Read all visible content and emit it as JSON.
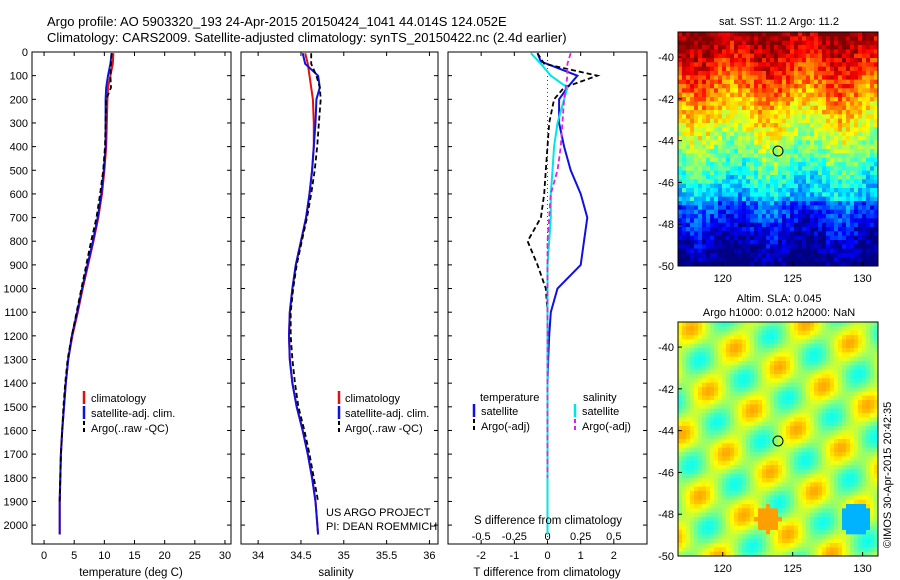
{
  "header": {
    "title_line1": "Argo profile: AO 5903320_193 24-Apr-2015 20150424_1041 44.014S 124.052E",
    "title_line2": "Climatology: CARS2009. Satellite-adjusted climatology: synTS_20150422.nc (2.4d earlier)"
  },
  "colors": {
    "climatology": "#e01010",
    "satellite": "#1010e0",
    "argo": "#000000",
    "salinity_sat": "#00e5e5",
    "salinity_argo": "#e020e0"
  },
  "legend_profile": [
    "climatology",
    "satellite-adj. clim.",
    "Argo(..raw -QC)"
  ],
  "legend_diff": {
    "temperature_title": "temperature",
    "salinity_title": "salinity",
    "temp_items": [
      "satellite",
      "Argo(-adj)"
    ],
    "sal_items": [
      "satellite",
      "Argo(-adj)"
    ]
  },
  "project": {
    "line1": "US ARGO PROJECT",
    "line2": "PI: DEAN ROEMMICH"
  },
  "imos_stamp": "©IMOS 30-Apr-2015 20:42:35",
  "maps": {
    "sst_title": "sat. SST: 11.2 Argo: 11.2",
    "sla_title_line1": "Altim. SLA: 0.045",
    "sla_title_line2": "Argo h1000: 0.012 h2000: NaN",
    "lat_ticks": [
      -40,
      -42,
      -44,
      -46,
      -48,
      -50
    ],
    "lon_ticks": [
      120,
      125,
      130
    ],
    "argo_location": {
      "lon": 124.052,
      "lat": -44.014
    }
  },
  "chart_data": [
    {
      "type": "line",
      "xlabel": "temperature (deg C)",
      "ylabel": "",
      "xlim": [
        -2,
        31
      ],
      "ylim": [
        2080,
        0
      ],
      "xticks": [
        0,
        5,
        10,
        15,
        20,
        25,
        30
      ],
      "yticks": [
        0,
        100,
        200,
        300,
        400,
        500,
        600,
        700,
        800,
        900,
        1000,
        1100,
        1200,
        1300,
        1400,
        1500,
        1600,
        1700,
        1800,
        1900,
        2000
      ],
      "series": [
        {
          "name": "climatology",
          "color": "#e01010",
          "x": [
            11.5,
            11.4,
            11.0,
            10.6,
            10.5,
            10.4,
            10.3,
            10.0,
            9.6,
            9.0,
            8.2,
            7.3,
            6.4,
            5.6,
            4.7,
            4.0,
            3.6,
            3.3,
            3.0,
            2.8,
            2.7,
            2.6,
            2.6
          ],
          "y": [
            5,
            50,
            100,
            150,
            200,
            300,
            400,
            500,
            600,
            700,
            800,
            900,
            1000,
            1100,
            1200,
            1300,
            1400,
            1500,
            1600,
            1700,
            1800,
            1900,
            2040
          ]
        },
        {
          "name": "satellite-adj. clim.",
          "color": "#1010e0",
          "x": [
            11.2,
            11.0,
            10.6,
            10.3,
            10.2,
            10.2,
            10.2,
            9.9,
            9.5,
            8.9,
            8.1,
            7.2,
            6.3,
            5.5,
            4.6,
            4.0,
            3.6,
            3.3,
            3.0,
            2.8,
            2.7,
            2.6,
            2.6
          ],
          "y": [
            5,
            50,
            100,
            150,
            200,
            300,
            400,
            500,
            600,
            700,
            800,
            900,
            1000,
            1100,
            1200,
            1300,
            1400,
            1500,
            1600,
            1700,
            1800,
            1900,
            2040
          ]
        },
        {
          "name": "Argo(..raw -QC)",
          "color": "#000000",
          "dashed": true,
          "x": [
            11.2,
            11.1,
            11.0,
            11.1,
            10.3,
            10.2,
            10.1,
            9.8,
            9.3,
            8.7,
            7.8,
            7.0,
            6.2,
            5.4,
            4.6,
            3.9,
            3.5,
            3.2,
            3.0,
            2.8,
            2.7,
            2.6
          ],
          "y": [
            5,
            50,
            100,
            150,
            200,
            300,
            400,
            500,
            600,
            700,
            800,
            900,
            1000,
            1100,
            1200,
            1300,
            1400,
            1500,
            1600,
            1700,
            1800,
            1900
          ]
        }
      ]
    },
    {
      "type": "line",
      "xlabel": "salinity",
      "ylabel": "",
      "xlim": [
        33.8,
        36.1
      ],
      "ylim": [
        2080,
        0
      ],
      "xticks": [
        34,
        34.5,
        35,
        35.5,
        36
      ],
      "series": [
        {
          "name": "climatology",
          "color": "#e01010",
          "x": [
            34.55,
            34.58,
            34.6,
            34.62,
            34.64,
            34.65,
            34.65,
            34.63,
            34.6,
            34.56,
            34.5,
            34.44,
            34.4,
            34.37,
            34.36,
            34.37,
            34.4,
            34.45,
            34.52,
            34.58,
            34.63,
            34.67,
            34.7
          ],
          "y": [
            5,
            50,
            100,
            150,
            200,
            300,
            400,
            500,
            600,
            700,
            800,
            900,
            1000,
            1100,
            1200,
            1300,
            1400,
            1500,
            1600,
            1700,
            1800,
            1900,
            2040
          ]
        },
        {
          "name": "satellite-adj. clim.",
          "color": "#1010e0",
          "x": [
            34.52,
            34.55,
            34.7,
            34.72,
            34.68,
            34.67,
            34.65,
            34.63,
            34.6,
            34.56,
            34.5,
            34.44,
            34.4,
            34.37,
            34.36,
            34.37,
            34.4,
            34.45,
            34.52,
            34.58,
            34.63,
            34.67,
            34.7
          ],
          "y": [
            5,
            50,
            100,
            150,
            200,
            300,
            400,
            500,
            600,
            700,
            800,
            900,
            1000,
            1100,
            1200,
            1300,
            1400,
            1500,
            1600,
            1700,
            1800,
            1900,
            2040
          ]
        },
        {
          "name": "Argo(..raw -QC)",
          "color": "#000000",
          "dashed": true,
          "x": [
            34.62,
            34.62,
            34.68,
            34.72,
            34.73,
            34.71,
            34.69,
            34.66,
            34.62,
            34.57,
            34.51,
            34.45,
            34.41,
            34.38,
            34.38,
            34.4,
            34.43,
            34.47,
            34.54,
            34.6,
            34.65,
            34.7
          ],
          "y": [
            5,
            50,
            100,
            150,
            200,
            300,
            400,
            500,
            600,
            700,
            800,
            900,
            1000,
            1100,
            1200,
            1300,
            1400,
            1500,
            1600,
            1700,
            1800,
            1900
          ]
        }
      ]
    },
    {
      "type": "line",
      "xlabel": "T difference from climatology",
      "xlabel_top": "S difference from climatology",
      "ylabel": "",
      "xlim": [
        -3,
        3
      ],
      "ylim": [
        2080,
        0
      ],
      "xticks": [
        -2,
        -1,
        0,
        1,
        2
      ],
      "xticks_top": [
        -0.5,
        -0.25,
        0,
        0.25,
        0.5
      ],
      "series": [
        {
          "name": "temperature satellite",
          "color": "#1010e0",
          "x": [
            -0.3,
            -0.2,
            0.9,
            0.6,
            0.35,
            0.35,
            0.5,
            0.7,
            1.0,
            1.2,
            1.1,
            1.0,
            0.3,
            0.1,
            0.05,
            0.02,
            0.0,
            0.0,
            0.0,
            0.0,
            0.0,
            0.0
          ],
          "y": [
            5,
            40,
            100,
            150,
            200,
            300,
            400,
            500,
            600,
            700,
            800,
            900,
            1000,
            1100,
            1200,
            1300,
            1400,
            1500,
            1600,
            1700,
            1800,
            2040
          ]
        },
        {
          "name": "temperature Argo(-adj)",
          "color": "#000000",
          "dashed": true,
          "x": [
            -0.3,
            -0.1,
            1.5,
            0.5,
            0.2,
            0.05,
            0.0,
            -0.05,
            -0.1,
            -0.2,
            -0.6,
            -0.3,
            -0.05,
            0.0,
            0.0,
            0.0,
            0.0,
            0.0,
            0.0,
            0.0
          ],
          "y": [
            5,
            50,
            100,
            150,
            200,
            300,
            400,
            500,
            600,
            700,
            800,
            900,
            1000,
            1100,
            1200,
            1300,
            1400,
            1500,
            1600,
            1800
          ]
        },
        {
          "name": "salinity satellite",
          "color": "#00e5e5",
          "x": [
            -0.5,
            -0.2,
            0.1,
            0.6,
            0.5,
            0.3,
            0.2,
            0.15,
            0.1,
            0.1,
            0.05,
            0.0,
            0.0,
            0.0,
            0.0,
            0.0,
            0.0,
            0.0,
            0.0,
            0.0
          ],
          "y": [
            5,
            50,
            100,
            150,
            200,
            300,
            400,
            500,
            600,
            700,
            800,
            900,
            1000,
            1200,
            1400,
            1500,
            1600,
            1700,
            1800,
            2040
          ]
        },
        {
          "name": "salinity Argo(-adj)",
          "color": "#e020e0",
          "dashed": true,
          "x": [
            0.7,
            0.6,
            0.6,
            0.5,
            0.45,
            0.4,
            0.3,
            0.1,
            0.05,
            0.0,
            0.0,
            0.0,
            0.0,
            0.0,
            0.0,
            0.0,
            0.0,
            0.0,
            0.0
          ],
          "y": [
            5,
            50,
            100,
            200,
            300,
            400,
            500,
            600,
            700,
            800,
            900,
            1000,
            1100,
            1200,
            1400,
            1500,
            1600,
            1700,
            1800
          ]
        }
      ]
    }
  ]
}
